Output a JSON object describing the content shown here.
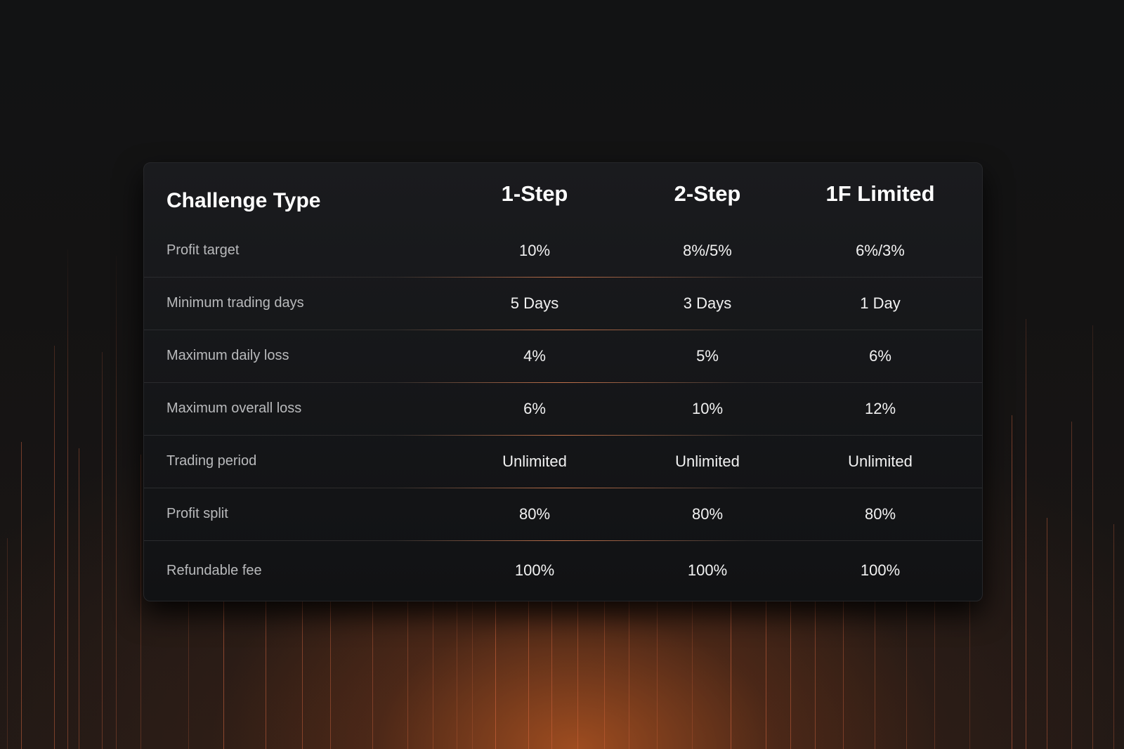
{
  "colors": {
    "background": "#111213",
    "glow": "#be5a23",
    "card": "#1a1b1e",
    "divider_accent": "#c0714a"
  },
  "table": {
    "header": {
      "label": "Challenge Type",
      "columns": [
        "1-Step",
        "2-Step",
        "1F Limited"
      ]
    },
    "rows": [
      {
        "label": "Profit target",
        "values": [
          "10%",
          "8%/5%",
          "6%/3%"
        ]
      },
      {
        "label": "Minimum trading days",
        "values": [
          "5 Days",
          "3 Days",
          "1 Day"
        ]
      },
      {
        "label": "Maximum daily loss",
        "values": [
          "4%",
          "5%",
          "6%"
        ]
      },
      {
        "label": "Maximum overall loss",
        "values": [
          "6%",
          "10%",
          "12%"
        ]
      },
      {
        "label": "Trading period",
        "values": [
          "Unlimited",
          "Unlimited",
          "Unlimited"
        ]
      },
      {
        "label": "Profit split",
        "values": [
          "80%",
          "80%",
          "80%"
        ]
      },
      {
        "label": "Refundable fee",
        "values": [
          "100%",
          "100%",
          "100%"
        ]
      }
    ]
  }
}
